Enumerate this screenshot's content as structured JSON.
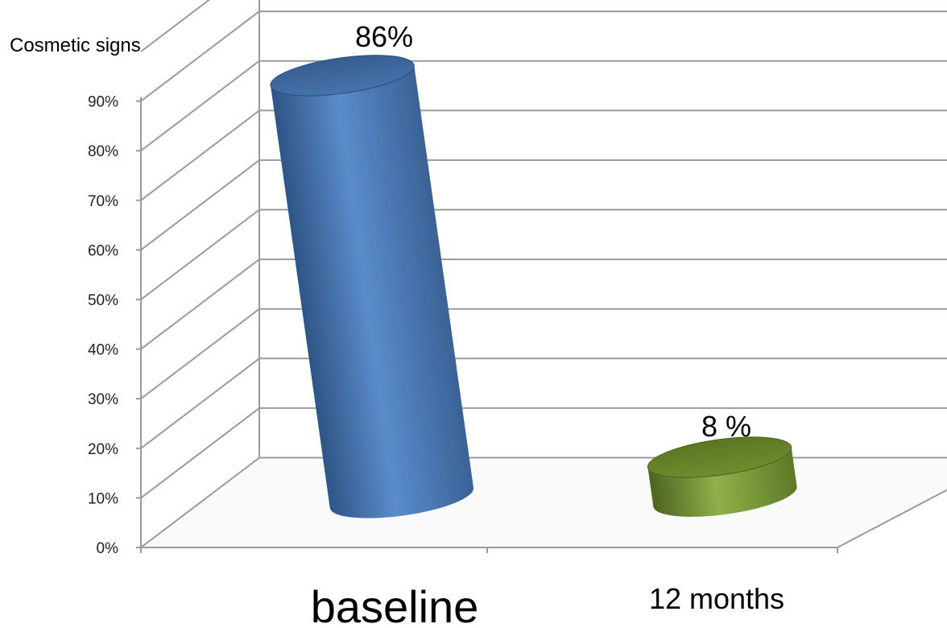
{
  "chart_data": {
    "type": "bar",
    "style": "3d-cylinder",
    "categories": [
      "baseline",
      "12 months"
    ],
    "values": [
      86,
      8
    ],
    "value_labels": [
      "86%",
      "8 %"
    ],
    "colors": [
      "#4a78b4",
      "#6f8c2c"
    ],
    "ylabel": "Cosmetic signs",
    "ylim": [
      0,
      100
    ],
    "yticks": [
      "0%",
      "10%",
      "20%",
      "30%",
      "40%",
      "50%",
      "60%",
      "70%",
      "80%",
      "90%"
    ],
    "grid": true,
    "legend": "none"
  }
}
